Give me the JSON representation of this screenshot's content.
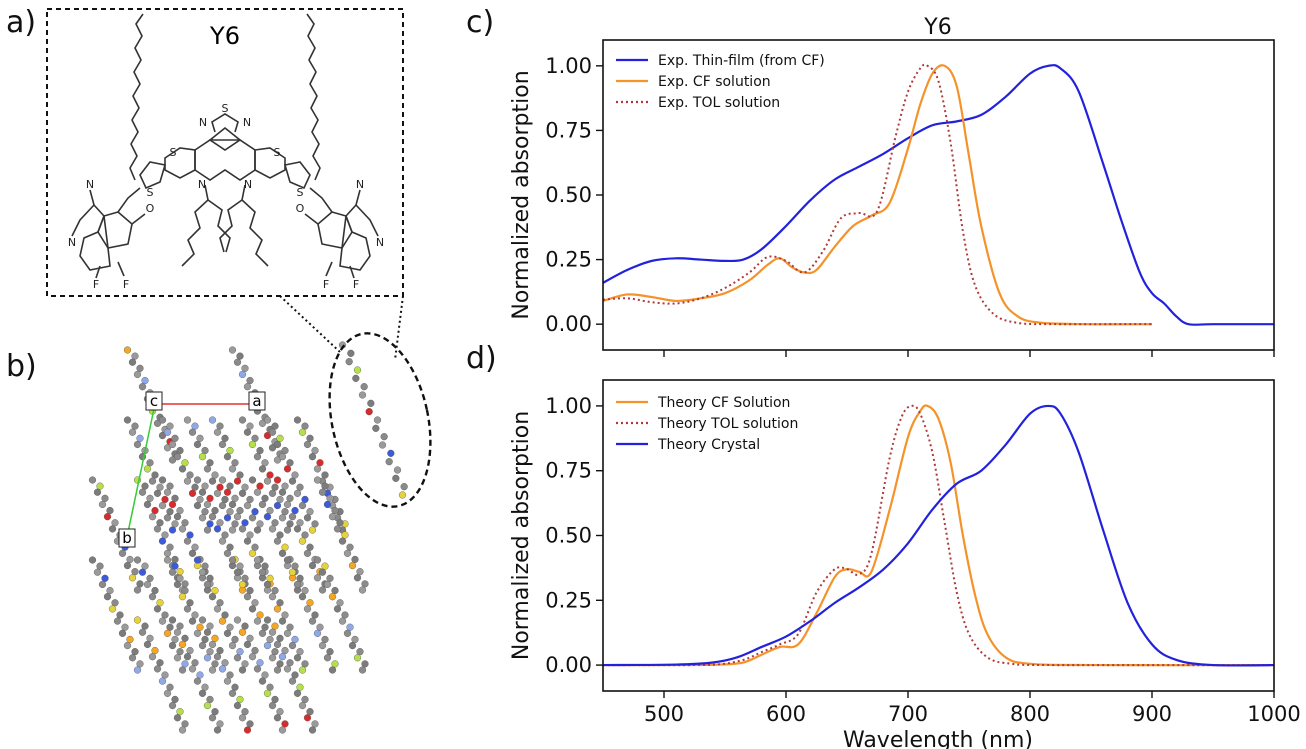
{
  "panels": {
    "a": "a)",
    "b": "b)",
    "c": "c)",
    "d": "d)"
  },
  "molecule": {
    "label": "Y6",
    "atom_labels": [
      "N",
      "S",
      "N",
      "S",
      "S",
      "S",
      "S",
      "N",
      "N",
      "N",
      "N",
      "N",
      "N",
      "O",
      "O",
      "F",
      "F",
      "F",
      "F"
    ]
  },
  "crystal": {
    "axis_labels": [
      "c",
      "a",
      "b"
    ]
  },
  "colors": {
    "thin_film": "#2222dd",
    "cf": "#f5922a",
    "tol": "#b03a3a",
    "axis": "#111111",
    "lattice_a": "#dd3333",
    "lattice_b": "#33cc33"
  },
  "chart_data": [
    {
      "type": "line",
      "panel": "c",
      "title": "Y6",
      "xlabel": "",
      "ylabel": "Normalized absorption",
      "xlim": [
        450,
        1000
      ],
      "ylim": [
        -0.1,
        1.1
      ],
      "xticks": [],
      "yticks": [
        0.0,
        0.25,
        0.5,
        0.75,
        1.0
      ],
      "ytick_labels": [
        "0.00",
        "0.25",
        "0.50",
        "0.75",
        "1.00"
      ],
      "legend_position": "top-left",
      "series": [
        {
          "name": "Exp. Thin-film (from CF)",
          "style": "solid",
          "color": "#2222dd",
          "x": [
            450,
            470,
            490,
            510,
            530,
            550,
            565,
            580,
            600,
            620,
            640,
            660,
            680,
            700,
            720,
            740,
            760,
            780,
            800,
            815,
            825,
            840,
            860,
            875,
            890,
            900,
            910,
            920,
            930,
            950,
            1000
          ],
          "y": [
            0.16,
            0.21,
            0.245,
            0.255,
            0.25,
            0.245,
            0.25,
            0.29,
            0.38,
            0.48,
            0.56,
            0.61,
            0.66,
            0.72,
            0.77,
            0.785,
            0.81,
            0.88,
            0.97,
            1.0,
            0.99,
            0.9,
            0.62,
            0.4,
            0.2,
            0.12,
            0.08,
            0.03,
            0.0,
            0.0,
            0.0
          ]
        },
        {
          "name": "Exp. CF solution",
          "style": "solid",
          "color": "#f5922a",
          "x": [
            450,
            470,
            490,
            510,
            530,
            550,
            570,
            585,
            595,
            605,
            615,
            625,
            640,
            655,
            670,
            685,
            700,
            710,
            720,
            730,
            740,
            750,
            760,
            775,
            790,
            810,
            850,
            900
          ],
          "y": [
            0.09,
            0.115,
            0.105,
            0.09,
            0.1,
            0.12,
            0.17,
            0.23,
            0.255,
            0.22,
            0.2,
            0.21,
            0.3,
            0.38,
            0.42,
            0.47,
            0.68,
            0.85,
            0.97,
            1.0,
            0.92,
            0.65,
            0.38,
            0.12,
            0.03,
            0.005,
            0.0,
            0.0
          ]
        },
        {
          "name": "Exp. TOL solution",
          "style": "dotted",
          "color": "#b03a3a",
          "x": [
            450,
            470,
            490,
            510,
            530,
            550,
            570,
            585,
            600,
            615,
            630,
            645,
            660,
            675,
            690,
            700,
            710,
            716,
            725,
            735,
            745,
            755,
            770,
            790,
            820,
            870,
            900
          ],
          "y": [
            0.095,
            0.1,
            0.085,
            0.08,
            0.1,
            0.14,
            0.2,
            0.26,
            0.245,
            0.2,
            0.28,
            0.41,
            0.43,
            0.44,
            0.73,
            0.9,
            0.99,
            1.0,
            0.94,
            0.7,
            0.36,
            0.15,
            0.04,
            0.005,
            0.0,
            0.0,
            0.0
          ]
        }
      ]
    },
    {
      "type": "line",
      "panel": "d",
      "title": "",
      "xlabel": "Wavelength (nm)",
      "ylabel": "Normalized absorption",
      "xlim": [
        450,
        1000
      ],
      "ylim": [
        -0.1,
        1.1
      ],
      "xticks": [
        500,
        600,
        700,
        800,
        900,
        1000
      ],
      "xtick_labels": [
        "500",
        "600",
        "700",
        "800",
        "900",
        "1000"
      ],
      "yticks": [
        0.0,
        0.25,
        0.5,
        0.75,
        1.0
      ],
      "ytick_labels": [
        "0.00",
        "0.25",
        "0.50",
        "0.75",
        "1.00"
      ],
      "legend_position": "top-left",
      "series": [
        {
          "name": "Theory CF Solution",
          "style": "solid",
          "color": "#f5922a",
          "x": [
            450,
            520,
            545,
            565,
            580,
            595,
            610,
            625,
            640,
            650,
            660,
            670,
            685,
            700,
            710,
            716,
            725,
            735,
            745,
            755,
            765,
            780,
            800,
            850,
            1000
          ],
          "y": [
            0.0,
            0.0,
            0.002,
            0.01,
            0.04,
            0.07,
            0.08,
            0.2,
            0.34,
            0.37,
            0.36,
            0.36,
            0.6,
            0.88,
            0.98,
            1.0,
            0.95,
            0.78,
            0.5,
            0.27,
            0.12,
            0.03,
            0.005,
            0.0,
            0.0
          ]
        },
        {
          "name": "Theory TOL solution",
          "style": "dotted",
          "color": "#b03a3a",
          "x": [
            450,
            520,
            545,
            565,
            580,
            595,
            610,
            625,
            640,
            650,
            660,
            670,
            685,
            695,
            703,
            710,
            720,
            730,
            740,
            750,
            765,
            785,
            820,
            1000
          ],
          "y": [
            0.0,
            0.0,
            0.003,
            0.02,
            0.05,
            0.08,
            0.12,
            0.28,
            0.37,
            0.37,
            0.35,
            0.43,
            0.8,
            0.96,
            1.0,
            0.97,
            0.82,
            0.55,
            0.28,
            0.12,
            0.03,
            0.005,
            0.0,
            0.0
          ]
        },
        {
          "name": "Theory Crystal",
          "style": "solid",
          "color": "#2222dd",
          "x": [
            450,
            510,
            540,
            560,
            580,
            600,
            620,
            640,
            660,
            680,
            700,
            720,
            740,
            760,
            780,
            800,
            815,
            825,
            840,
            860,
            880,
            900,
            920,
            950,
            1000
          ],
          "y": [
            0.0,
            0.002,
            0.01,
            0.03,
            0.07,
            0.11,
            0.17,
            0.24,
            0.3,
            0.37,
            0.47,
            0.6,
            0.7,
            0.75,
            0.85,
            0.97,
            1.0,
            0.97,
            0.82,
            0.52,
            0.24,
            0.08,
            0.02,
            0.0,
            0.0
          ]
        }
      ]
    }
  ]
}
